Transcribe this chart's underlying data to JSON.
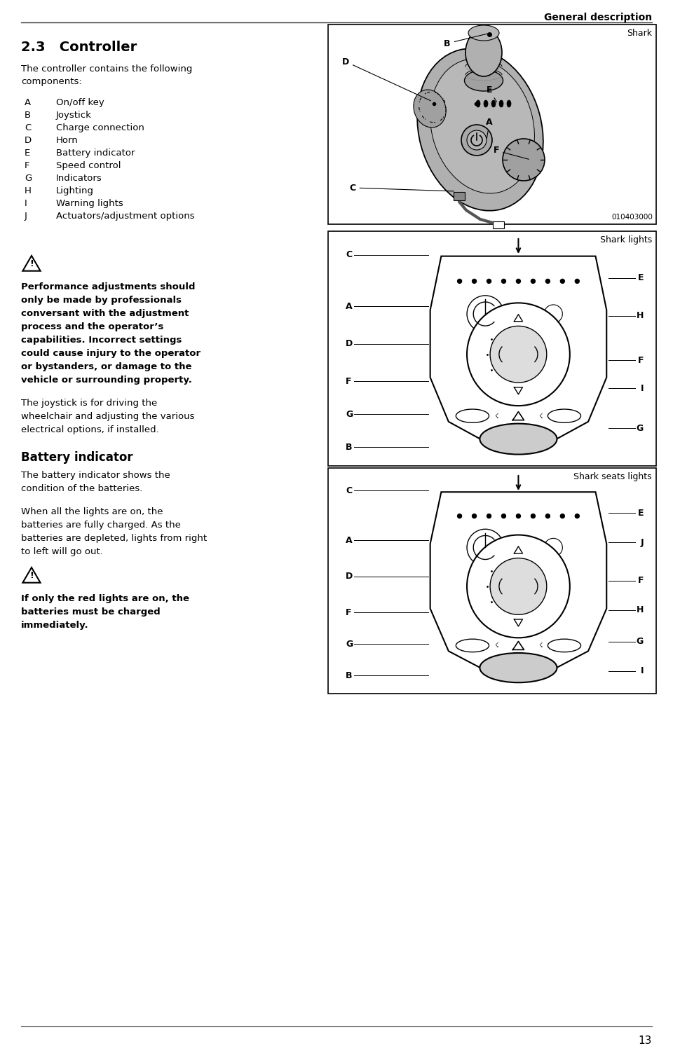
{
  "page_num": "13",
  "header_right": "General description",
  "section_title": "2.3",
  "section_title2": "Controller",
  "intro_text1": "The controller contains the following",
  "intro_text2": "components:",
  "components": [
    [
      "A",
      "On/off key"
    ],
    [
      "B",
      "Joystick"
    ],
    [
      "C",
      "Charge connection"
    ],
    [
      "D",
      "Horn"
    ],
    [
      "E",
      "Battery indicator"
    ],
    [
      "F",
      "Speed control"
    ],
    [
      "G",
      "Indicators"
    ],
    [
      "H",
      "Lighting"
    ],
    [
      "I",
      "Warning lights"
    ],
    [
      "J",
      "Actuators/adjustment options"
    ]
  ],
  "warn1_lines": [
    "Performance adjustments should",
    "only be made by professionals",
    "conversant with the adjustment",
    "process and the operator’s",
    "capabilities. Incorrect settings",
    "could cause injury to the operator",
    "or bystanders, or damage to the",
    "vehicle or surrounding property."
  ],
  "joystick_lines": [
    "The joystick is for driving the",
    "wheelchair and adjusting the various",
    "electrical options, if installed."
  ],
  "battery_title": "Battery indicator",
  "batt1_lines": [
    "The battery indicator shows the",
    "condition of the batteries."
  ],
  "batt2_lines": [
    "When all the lights are on, the",
    "batteries are fully charged. As the",
    "batteries are depleted, lights from right",
    "to left will go out."
  ],
  "warn2_lines": [
    "If only the red lights are on, the",
    "batteries must be charged",
    "immediately."
  ],
  "fig1_label": "Shark",
  "fig1_code": "010403000",
  "fig2_label": "Shark lights",
  "fig3_label": "Shark seats lights",
  "bg_color": "#ffffff",
  "text_color": "#000000"
}
